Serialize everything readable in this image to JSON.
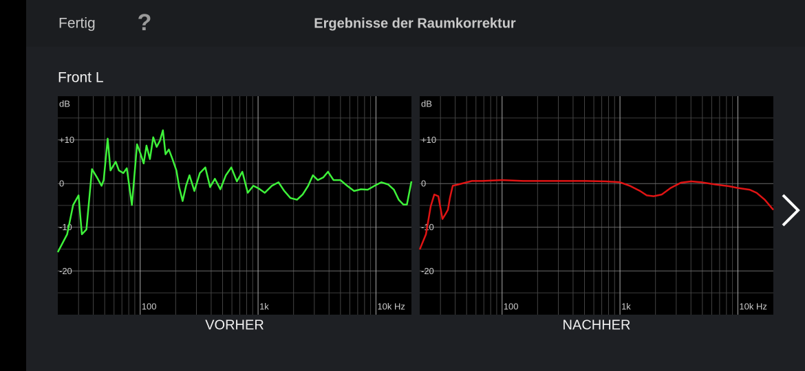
{
  "header": {
    "done": "Fertig",
    "help": "?",
    "title": "Ergebnisse der Raumkorrektur"
  },
  "section": "Front L",
  "chart_data": [
    {
      "type": "line",
      "title": "VORHER",
      "ylabel": "dB",
      "xlog": true,
      "grid": true,
      "xlim": [
        20,
        20000
      ],
      "ylim": [
        -30,
        20
      ],
      "xticks": [
        {
          "value": 100,
          "label": "100"
        },
        {
          "value": 1000,
          "label": "1k"
        },
        {
          "value": 10000,
          "label": "10k Hz"
        }
      ],
      "xminor": [
        30,
        40,
        50,
        60,
        70,
        80,
        90,
        200,
        300,
        400,
        500,
        600,
        700,
        800,
        900,
        2000,
        3000,
        4000,
        5000,
        6000,
        7000,
        8000,
        9000
      ],
      "yticks": [
        {
          "value": 10,
          "label": "+10"
        },
        0,
        -10,
        -20
      ],
      "yminor": [
        15,
        5,
        -5,
        -15,
        -25
      ],
      "series": [
        {
          "color": "#3ef23a",
          "x": [
            20,
            24,
            27,
            30,
            32,
            35,
            39,
            43,
            47,
            49,
            53,
            56,
            62,
            66,
            72,
            77,
            85,
            94,
            101,
            107,
            113,
            121,
            129,
            138,
            147,
            156,
            164,
            175,
            188,
            203,
            214,
            229,
            245,
            262,
            288,
            321,
            357,
            392,
            430,
            479,
            533,
            593,
            661,
            735,
            818,
            911,
            1010,
            1140,
            1310,
            1490,
            1660,
            1880,
            2140,
            2390,
            2660,
            2920,
            3210,
            3570,
            3920,
            4360,
            4990,
            5700,
            6520,
            7450,
            8520,
            9730,
            11100,
            12700,
            14200,
            15600,
            17100,
            18300,
            20000
          ],
          "values": [
            -15.7,
            -11.6,
            -4.9,
            -2.7,
            -11.6,
            -10.5,
            3.3,
            1.4,
            -0.5,
            0.8,
            10.3,
            3,
            5,
            3,
            2.4,
            3.5,
            -4.9,
            9,
            6.7,
            4.6,
            8.7,
            5.6,
            10.6,
            8.4,
            9.8,
            12.2,
            6.7,
            7.8,
            5.6,
            3,
            -0.8,
            -4,
            -0.5,
            1.9,
            -1.7,
            2.4,
            3.7,
            -0.8,
            1.1,
            -1.3,
            1.9,
            3.7,
            0.5,
            2.7,
            -2.1,
            -0.5,
            -1.1,
            -2.1,
            -0.5,
            0.3,
            -1.6,
            -3.3,
            -3.7,
            -2.5,
            -0.5,
            1.9,
            0.8,
            1.4,
            2.7,
            0.8,
            0.8,
            -0.5,
            -1.7,
            -1.3,
            -1.4,
            -0.5,
            0.3,
            -0.2,
            -1.4,
            -3.7,
            -4.8,
            -4.8,
            0.5
          ]
        }
      ]
    },
    {
      "type": "line",
      "title": "NACHHER",
      "ylabel": "dB",
      "xlog": true,
      "grid": true,
      "xlim": [
        20,
        20000
      ],
      "ylim": [
        -30,
        20
      ],
      "xticks": [
        {
          "value": 100,
          "label": "100"
        },
        {
          "value": 1000,
          "label": "1k"
        },
        {
          "value": 10000,
          "label": "10k Hz"
        }
      ],
      "xminor": [
        30,
        40,
        50,
        60,
        70,
        80,
        90,
        200,
        300,
        400,
        500,
        600,
        700,
        800,
        900,
        2000,
        3000,
        4000,
        5000,
        6000,
        7000,
        8000,
        9000
      ],
      "yticks": [
        {
          "value": 10,
          "label": "+10"
        },
        0,
        -10,
        -20
      ],
      "yminor": [
        15,
        5,
        -5,
        -15,
        -25
      ],
      "series": [
        {
          "color": "#e01414",
          "x": [
            20,
            22.6,
            24.8,
            26.6,
            28.8,
            31.2,
            32.9,
            34.7,
            36.1,
            38.1,
            42.5,
            48.5,
            55.5,
            67.8,
            100,
            151,
            259,
            505,
            755,
            1000,
            1210,
            1480,
            1690,
            1930,
            2260,
            2690,
            3290,
            4020,
            4920,
            6430,
            8400,
            10000,
            12600,
            14400,
            16900,
            20000
          ],
          "values": [
            -15.1,
            -11.6,
            -5.2,
            -2.5,
            -2.9,
            -8.1,
            -7.1,
            -6,
            -3.3,
            -0.5,
            -0.2,
            0.2,
            0.6,
            0.6,
            0.8,
            0.6,
            0.6,
            0.6,
            0.5,
            0.3,
            -0.5,
            -1.7,
            -2.7,
            -2.9,
            -2.5,
            -1,
            0.2,
            0.5,
            0.3,
            -0.2,
            -0.6,
            -1,
            -1.4,
            -2.1,
            -3.7,
            -6
          ]
        }
      ]
    }
  ]
}
